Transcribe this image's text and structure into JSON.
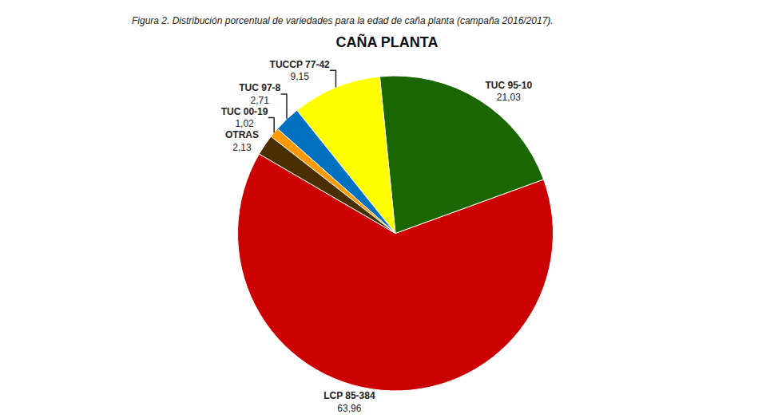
{
  "chart_data": {
    "type": "pie",
    "title": "CAÑA PLANTA",
    "subtitle": "Figura 2. Distribución porcentual de variedades para la edad de caña planta (campaña 2016/2017).",
    "categories": [
      "LCP 85-384",
      "TUC 95-10",
      "TUCCP 77-42",
      "TUC 97-8",
      "TUC 00-19",
      "OTRAS"
    ],
    "values": [
      63.96,
      21.03,
      9.15,
      2.71,
      1.02,
      2.13
    ],
    "value_labels": [
      "63,96",
      "21,03",
      "9,15",
      "2,71",
      "1,02",
      "2,13"
    ],
    "colors": [
      "#cc0000",
      "#1a6600",
      "#ffff00",
      "#0070c0",
      "#ff9900",
      "#4a3000"
    ],
    "data_labels": true
  }
}
